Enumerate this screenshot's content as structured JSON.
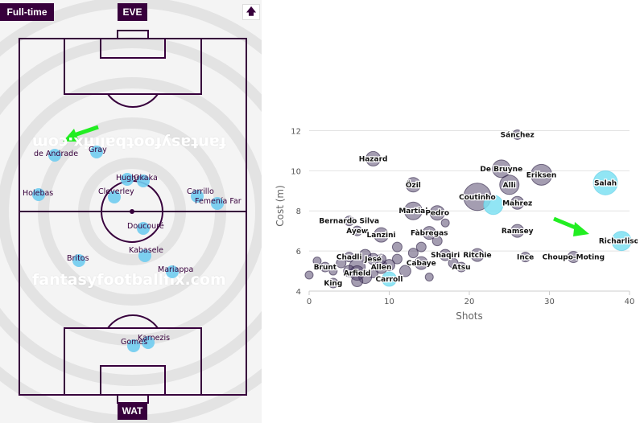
{
  "pitch": {
    "status": "Full-time",
    "home_team": "EVE",
    "away_team": "WAT",
    "sort_icon": "up-arrow-icon",
    "watermark": "fantasyfootballfix.com",
    "colors": {
      "badge": "#37003c",
      "player": "#70ccef",
      "line": "#37003c",
      "annotation": "#22ee22"
    },
    "players": [
      {
        "name": "de Andrade"
      },
      {
        "name": "Gray"
      },
      {
        "name": "Holebas"
      },
      {
        "name": "Hughes"
      },
      {
        "name": "Okaka"
      },
      {
        "name": "Cleverley"
      },
      {
        "name": "Carrillo"
      },
      {
        "name": "Femenía Far"
      },
      {
        "name": "Doucouré"
      },
      {
        "name": "Kabasele"
      },
      {
        "name": "Britos"
      },
      {
        "name": "Mariappa"
      },
      {
        "name": "Karnezis"
      },
      {
        "name": "Gomes"
      }
    ]
  },
  "chart_data": {
    "type": "scatter",
    "xlabel": "Shots",
    "ylabel": "Cost (m)",
    "xlim": [
      0,
      40
    ],
    "ylim": [
      4,
      12.5
    ],
    "xticks": [
      0,
      10,
      20,
      30,
      40
    ],
    "yticks": [
      4,
      6,
      8,
      10,
      12
    ],
    "grid": "horizontal",
    "colors": {
      "default": "#4a3b63",
      "highlight": "#7ee0f2",
      "annotation": "#22ee22"
    },
    "points": [
      {
        "label": "Sánchez",
        "x": 26,
        "y": 11.8,
        "r": 6,
        "hl": false
      },
      {
        "label": "Hazard",
        "x": 8,
        "y": 10.6,
        "r": 9,
        "hl": false
      },
      {
        "label": "De Bruyne",
        "x": 24,
        "y": 10.1,
        "r": 11,
        "hl": false
      },
      {
        "label": "Eriksen",
        "x": 29,
        "y": 9.8,
        "r": 13,
        "hl": false
      },
      {
        "label": "Özil",
        "x": 13,
        "y": 9.3,
        "r": 9,
        "hl": false
      },
      {
        "label": "Alli",
        "x": 25,
        "y": 9.3,
        "r": 12,
        "hl": false
      },
      {
        "label": "Salah",
        "x": 37,
        "y": 9.4,
        "r": 15,
        "hl": true
      },
      {
        "label": "Coutinho",
        "x": 21,
        "y": 8.7,
        "r": 17,
        "hl": false
      },
      {
        "label": "Mahrez",
        "x": 26,
        "y": 8.4,
        "r": 8,
        "hl": false
      },
      {
        "label": "Martial",
        "x": 13,
        "y": 8.0,
        "r": 11,
        "hl": false
      },
      {
        "label": "Pedro",
        "x": 16,
        "y": 7.9,
        "r": 9,
        "hl": false
      },
      {
        "label": "Bernardo Silva",
        "x": 5,
        "y": 7.5,
        "r": 6,
        "hl": false
      },
      {
        "label": "Ayew",
        "x": 6,
        "y": 7.0,
        "r": 6,
        "hl": false
      },
      {
        "label": "Lanzini",
        "x": 9,
        "y": 6.8,
        "r": 9,
        "hl": false
      },
      {
        "label": "Fàbregas",
        "x": 15,
        "y": 6.9,
        "r": 8,
        "hl": false
      },
      {
        "label": "Ramsey",
        "x": 26,
        "y": 7.0,
        "r": 8,
        "hl": false
      },
      {
        "label": "Richarlison",
        "x": 39,
        "y": 6.5,
        "r": 12,
        "hl": true
      },
      {
        "label": "Shaqiri",
        "x": 17,
        "y": 5.8,
        "r": 7,
        "hl": false
      },
      {
        "label": "Ritchie",
        "x": 21,
        "y": 5.8,
        "r": 8,
        "hl": false
      },
      {
        "label": "Chadli",
        "x": 5,
        "y": 5.7,
        "r": 6,
        "hl": false
      },
      {
        "label": "Jesé",
        "x": 8,
        "y": 5.6,
        "r": 7,
        "hl": false
      },
      {
        "label": "Cabaye",
        "x": 14,
        "y": 5.4,
        "r": 8,
        "hl": false
      },
      {
        "label": "Ince",
        "x": 27,
        "y": 5.7,
        "r": 6,
        "hl": false
      },
      {
        "label": "Choupo-Moting",
        "x": 33,
        "y": 5.7,
        "r": 7,
        "hl": false
      },
      {
        "label": "Brunt",
        "x": 2,
        "y": 5.2,
        "r": 6,
        "hl": false
      },
      {
        "label": "Allen",
        "x": 9,
        "y": 5.2,
        "r": 8,
        "hl": false
      },
      {
        "label": "Atsu",
        "x": 19,
        "y": 5.2,
        "r": 6,
        "hl": false
      },
      {
        "label": "Arfield",
        "x": 6,
        "y": 4.9,
        "r": 9,
        "hl": false
      },
      {
        "label": "Carroll",
        "x": 10,
        "y": 4.6,
        "r": 9,
        "hl": true
      },
      {
        "label": "King",
        "x": 3,
        "y": 4.4,
        "r": 6,
        "hl": false
      },
      {
        "label": "",
        "x": 1,
        "y": 5.5,
        "r": 5,
        "hl": false
      },
      {
        "label": "",
        "x": 3,
        "y": 5.0,
        "r": 5,
        "hl": false
      },
      {
        "label": "",
        "x": 4,
        "y": 5.4,
        "r": 6,
        "hl": false
      },
      {
        "label": "",
        "x": 5,
        "y": 5.0,
        "r": 7,
        "hl": false
      },
      {
        "label": "",
        "x": 6,
        "y": 5.2,
        "r": 10,
        "hl": false
      },
      {
        "label": "",
        "x": 6,
        "y": 4.5,
        "r": 7,
        "hl": false
      },
      {
        "label": "",
        "x": 7,
        "y": 4.7,
        "r": 8,
        "hl": false
      },
      {
        "label": "",
        "x": 7,
        "y": 5.8,
        "r": 7,
        "hl": false
      },
      {
        "label": "",
        "x": 8,
        "y": 4.9,
        "r": 6,
        "hl": false
      },
      {
        "label": "",
        "x": 9,
        "y": 5.6,
        "r": 6,
        "hl": false
      },
      {
        "label": "",
        "x": 10,
        "y": 5.3,
        "r": 7,
        "hl": false
      },
      {
        "label": "",
        "x": 11,
        "y": 5.6,
        "r": 6,
        "hl": false
      },
      {
        "label": "",
        "x": 12,
        "y": 5.0,
        "r": 7,
        "hl": false
      },
      {
        "label": "",
        "x": 13,
        "y": 5.9,
        "r": 6,
        "hl": false
      },
      {
        "label": "",
        "x": 14,
        "y": 6.2,
        "r": 6,
        "hl": false
      },
      {
        "label": "",
        "x": 16,
        "y": 6.5,
        "r": 6,
        "hl": false
      },
      {
        "label": "",
        "x": 17,
        "y": 7.4,
        "r": 5,
        "hl": false
      },
      {
        "label": "",
        "x": 18,
        "y": 5.4,
        "r": 6,
        "hl": false
      },
      {
        "label": "",
        "x": 11,
        "y": 6.2,
        "r": 6,
        "hl": false
      },
      {
        "label": "",
        "x": 0,
        "y": 4.8,
        "r": 5,
        "hl": false
      },
      {
        "label": "",
        "x": 23,
        "y": 8.3,
        "r": 12,
        "hl": true
      },
      {
        "label": "",
        "x": 15,
        "y": 4.7,
        "r": 5,
        "hl": false
      }
    ]
  }
}
